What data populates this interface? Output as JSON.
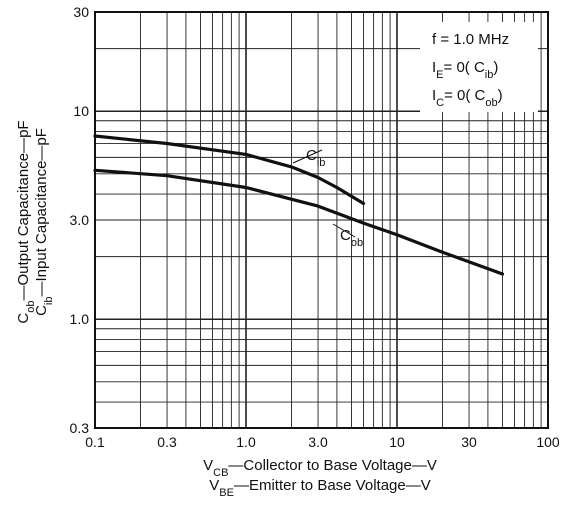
{
  "chart_data": {
    "type": "line",
    "xscale": "log",
    "yscale": "log",
    "xlim": [
      0.1,
      100
    ],
    "ylim": [
      0.3,
      30
    ],
    "grid": true,
    "x_ticks": [
      {
        "value": 0.1,
        "label": "0.1"
      },
      {
        "value": 0.3,
        "label": "0.3"
      },
      {
        "value": 1,
        "label": "1.0"
      },
      {
        "value": 3,
        "label": "3.0"
      },
      {
        "value": 10,
        "label": "10"
      },
      {
        "value": 30,
        "label": "30"
      },
      {
        "value": 100,
        "label": "100"
      }
    ],
    "y_ticks": [
      {
        "value": 0.3,
        "label": "0.3"
      },
      {
        "value": 1,
        "label": "1.0"
      },
      {
        "value": 3,
        "label": "3.0"
      },
      {
        "value": 10,
        "label": "10"
      },
      {
        "value": 30,
        "label": "30"
      }
    ],
    "xlabel": [
      {
        "main": "V",
        "sub": "CB",
        "rest": "—Collector to Base Voltage—V"
      },
      {
        "main": "V",
        "sub": "BE",
        "rest": "—Emitter to Base Voltage—V"
      }
    ],
    "ylabel": [
      {
        "main": "C",
        "sub": "ob",
        "rest": "—Output Capacitance—pF"
      },
      {
        "main": "C",
        "sub": "ib",
        "rest": "—Input Capacitance—pF"
      }
    ],
    "conditions": [
      {
        "main": "f = 1.0 MHz",
        "sub": "",
        "rest": ""
      },
      {
        "main": "I",
        "sub": "E",
        "rest": "= 0( C",
        "sub2": "ib",
        "end": ")"
      },
      {
        "main": "I",
        "sub": "C",
        "rest": "= 0( C",
        "sub2": "ob",
        "end": ")"
      }
    ],
    "series": [
      {
        "name": "Cib",
        "label_main": "C",
        "label_sub": "ib",
        "x": [
          0.1,
          0.3,
          1.0,
          2.0,
          3.0,
          4.0,
          6.0
        ],
        "y": [
          7.6,
          7.0,
          6.2,
          5.4,
          4.8,
          4.3,
          3.6
        ]
      },
      {
        "name": "Cob",
        "label_main": "C",
        "label_sub": "ob",
        "x": [
          0.1,
          0.3,
          1.0,
          3.0,
          6.0,
          10,
          20,
          50
        ],
        "y": [
          5.2,
          4.9,
          4.3,
          3.5,
          2.9,
          2.55,
          2.1,
          1.65
        ]
      }
    ]
  }
}
